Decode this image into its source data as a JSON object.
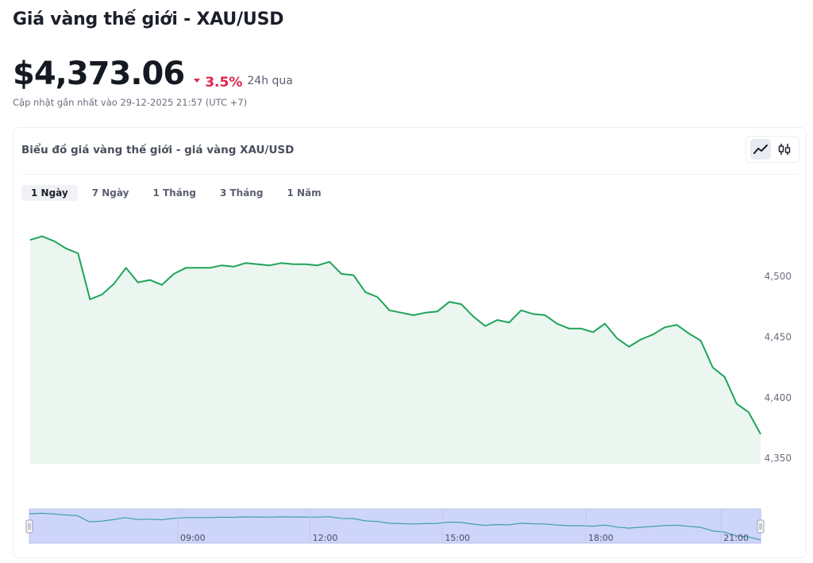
{
  "header": {
    "title": "Giá vàng thế giới - XAU/USD",
    "price": "$4,373.06",
    "change": "3.5%",
    "period": "24h qua",
    "updated": "Cập nhật gần nhất vào 29-12-2025 21:57 (UTC +7)"
  },
  "chart_card": {
    "title": "Biểu đồ giá vàng thế giới - giá vàng XAU/USD",
    "ranges": [
      "1 Ngày",
      "7 Ngày",
      "1 Tháng",
      "3 Tháng",
      "1 Năm"
    ],
    "active_range": 0
  },
  "colors": {
    "line": "#1fa35a",
    "fill": "#eaf6ef",
    "negative": "#e0244b",
    "navigator_fill": "#cdd5fb",
    "navigator_line": "#3d9fb0"
  },
  "chart_data": {
    "type": "area",
    "title": "",
    "xlabel": "",
    "ylabel": "",
    "ylim": [
      4350,
      4535
    ],
    "y_ticks": [
      4350,
      4400,
      4450,
      4500
    ],
    "y_tick_labels": [
      "4,350",
      "4,400",
      "4,450",
      "4,500"
    ],
    "navigator_ticks": [
      {
        "label": "09:00",
        "t": 0.203
      },
      {
        "label": "12:00",
        "t": 0.384
      },
      {
        "label": "15:00",
        "t": 0.565
      },
      {
        "label": "18:00",
        "t": 0.761
      },
      {
        "label": "21:00",
        "t": 0.946
      }
    ],
    "series": [
      {
        "values": [
          4530,
          4533,
          4529,
          4523,
          4519,
          4481,
          4485,
          4494,
          4507,
          4495,
          4497,
          4493,
          4502,
          4507,
          4507,
          4507,
          4509,
          4508,
          4511,
          4510,
          4509,
          4511,
          4510,
          4510,
          4509,
          4512,
          4502,
          4501,
          4487,
          4483,
          4472,
          4470,
          4468,
          4470,
          4471,
          4479,
          4477,
          4467,
          4459,
          4464,
          4462,
          4472,
          4469,
          4468,
          4461,
          4457,
          4457,
          4454,
          4461,
          4449,
          4442,
          4448,
          4452,
          4458,
          4460,
          4453,
          4447,
          4425,
          4417,
          4395,
          4388,
          4370
        ]
      }
    ]
  }
}
